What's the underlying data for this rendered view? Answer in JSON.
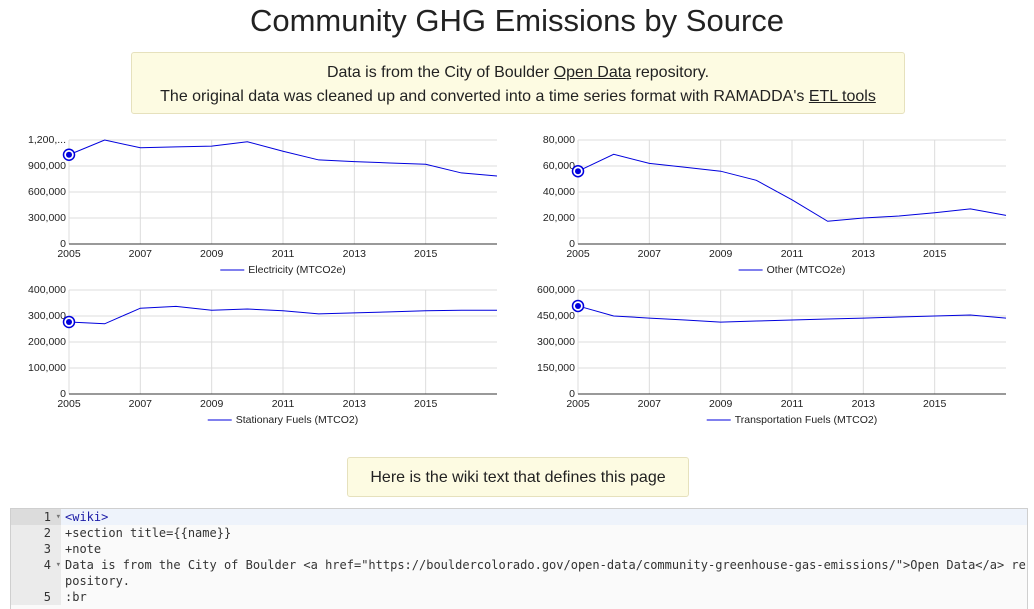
{
  "title": "Community GHG Emissions by Source",
  "note": {
    "line1": [
      "Data is from the City of Boulder",
      "Open Data",
      "repository."
    ],
    "line2": [
      "The original data was cleaned up and converted into a time series format with RAMADDA's",
      "ETL tools"
    ]
  },
  "chart_data": [
    {
      "type": "line",
      "x": [
        2005,
        2006,
        2007,
        2008,
        2009,
        2010,
        2011,
        2012,
        2013,
        2014,
        2015,
        2016,
        2017
      ],
      "series": [
        {
          "name": "Electricity (MTCO2e)",
          "color": "#0000dd",
          "values": [
            1030000,
            1200000,
            1110000,
            1120000,
            1130000,
            1180000,
            1070000,
            970000,
            950000,
            935000,
            920000,
            820000,
            785000
          ]
        }
      ],
      "xlim": [
        2005,
        2017
      ],
      "xticks": [
        2005,
        2007,
        2009,
        2011,
        2013,
        2015
      ],
      "ylim": [
        0,
        1200000
      ],
      "yticks": [
        0,
        {
          "value": 300000,
          "label": "300,000"
        },
        {
          "value": 600000,
          "label": "600,000"
        },
        {
          "value": 900000,
          "label": "900,000"
        },
        {
          "value": 1200000,
          "label": "1,200,..."
        }
      ],
      "grid": true,
      "legend": "bottom"
    },
    {
      "type": "line",
      "x": [
        2005,
        2006,
        2007,
        2008,
        2009,
        2010,
        2011,
        2012,
        2013,
        2014,
        2015,
        2016,
        2017
      ],
      "series": [
        {
          "name": "Other (MTCO2e)",
          "color": "#0000dd",
          "values": [
            56000,
            69000,
            62000,
            59000,
            56000,
            49000,
            34000,
            17500,
            20000,
            21500,
            24000,
            27000,
            22000
          ]
        }
      ],
      "xlim": [
        2005,
        2017
      ],
      "xticks": [
        2005,
        2007,
        2009,
        2011,
        2013,
        2015
      ],
      "ylim": [
        0,
        80000
      ],
      "yticks": [
        0,
        {
          "value": 20000,
          "label": "20,000"
        },
        {
          "value": 40000,
          "label": "40,000"
        },
        {
          "value": 60000,
          "label": "60,000"
        },
        {
          "value": 80000,
          "label": "80,000"
        }
      ],
      "grid": true,
      "legend": "bottom"
    },
    {
      "type": "line",
      "x": [
        2005,
        2006,
        2007,
        2008,
        2009,
        2010,
        2011,
        2012,
        2013,
        2014,
        2015,
        2016,
        2017
      ],
      "series": [
        {
          "name": "Stationary Fuels (MTCO2)",
          "color": "#0000dd",
          "values": [
            277000,
            270000,
            330000,
            337000,
            322000,
            327000,
            320000,
            308000,
            312000,
            316000,
            320000,
            322000,
            322000
          ]
        }
      ],
      "xlim": [
        2005,
        2017
      ],
      "xticks": [
        2005,
        2007,
        2009,
        2011,
        2013,
        2015
      ],
      "ylim": [
        0,
        400000
      ],
      "yticks": [
        0,
        {
          "value": 100000,
          "label": "100,000"
        },
        {
          "value": 200000,
          "label": "200,000"
        },
        {
          "value": 300000,
          "label": "300,000"
        },
        {
          "value": 400000,
          "label": "400,000"
        }
      ],
      "grid": true,
      "legend": "bottom"
    },
    {
      "type": "line",
      "x": [
        2005,
        2006,
        2007,
        2008,
        2009,
        2010,
        2011,
        2012,
        2013,
        2014,
        2015,
        2016,
        2017
      ],
      "series": [
        {
          "name": "Transportation Fuels (MTCO2)",
          "color": "#0000dd",
          "values": [
            508000,
            450000,
            438000,
            427000,
            415000,
            421000,
            427000,
            433000,
            438000,
            444000,
            450000,
            456000,
            438000
          ]
        }
      ],
      "xlim": [
        2005,
        2017
      ],
      "xticks": [
        2005,
        2007,
        2009,
        2011,
        2013,
        2015
      ],
      "ylim": [
        0,
        600000
      ],
      "yticks": [
        0,
        {
          "value": 150000,
          "label": "150,000"
        },
        {
          "value": 300000,
          "label": "300,000"
        },
        {
          "value": 450000,
          "label": "450,000"
        },
        {
          "value": 600000,
          "label": "600,000"
        }
      ],
      "grid": true,
      "legend": "bottom"
    }
  ],
  "wiki_note": "Here is the wiki text that defines this page",
  "code": {
    "lines": [
      {
        "number": 1,
        "text": "<wiki>"
      },
      {
        "number": 2,
        "text": "+section title={{name}}"
      },
      {
        "number": 3,
        "text": "+note"
      },
      {
        "number": 4,
        "text": "Data is from the City of Boulder <a href=\"https://bouldercolorado.gov/open-data/community-greenhouse-gas-emissions/\">Open Data</a> repository."
      },
      {
        "number": 5,
        "text": ":br"
      }
    ]
  }
}
